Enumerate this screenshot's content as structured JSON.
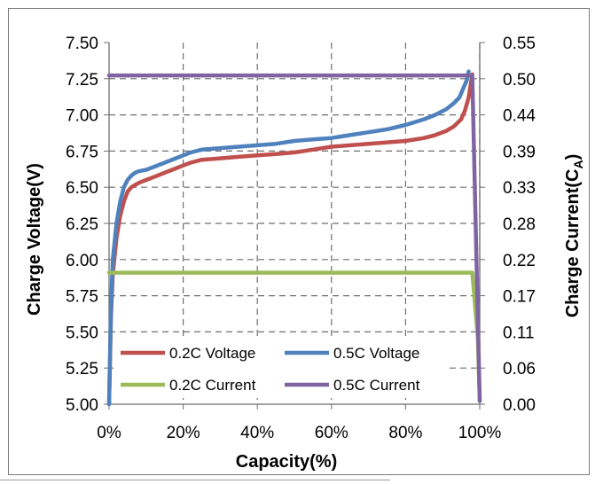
{
  "chart_data": {
    "type": "line",
    "xlabel": "Capacity(%)",
    "ylabel_left": "Charge Voltage(V)",
    "ylabel_right": {
      "main": "Charge Current(C",
      "sub": "A",
      "close": ")"
    },
    "xlim": [
      0,
      100
    ],
    "ylim_left": [
      5.0,
      7.5
    ],
    "ylim_right": [
      0.0,
      0.55
    ],
    "x_ticks": [
      "0%",
      "20%",
      "40%",
      "60%",
      "80%",
      "100%"
    ],
    "y_ticks_left": [
      "7.50",
      "7.25",
      "7.00",
      "6.75",
      "6.50",
      "6.25",
      "6.00",
      "5.75",
      "5.50",
      "5.25",
      "5.00"
    ],
    "y_ticks_right": [
      "0.55",
      "0.50",
      "0.44",
      "0.39",
      "0.33",
      "0.28",
      "0.22",
      "0.17",
      "0.11",
      "0.06",
      "0.00"
    ],
    "grid": "dashed",
    "legend_position": "bottom-left",
    "legend": [
      "0.2C Voltage",
      "0.5C Voltage",
      "0.2C Current",
      "0.5C Current"
    ],
    "series": [
      {
        "name": "0.2C Voltage",
        "axis": "left",
        "color": "#c0504d",
        "x": [
          0,
          0.5,
          1,
          2,
          3,
          4,
          5,
          6,
          8,
          10,
          12,
          15,
          18,
          20,
          22,
          25,
          30,
          35,
          40,
          45,
          50,
          55,
          60,
          65,
          70,
          75,
          80,
          85,
          88,
          91,
          93,
          95,
          96,
          97,
          98
        ],
        "y": [
          5.0,
          5.6,
          5.9,
          6.15,
          6.3,
          6.4,
          6.47,
          6.5,
          6.53,
          6.55,
          6.57,
          6.6,
          6.63,
          6.65,
          6.67,
          6.69,
          6.7,
          6.71,
          6.72,
          6.73,
          6.74,
          6.76,
          6.78,
          6.79,
          6.8,
          6.81,
          6.82,
          6.84,
          6.86,
          6.89,
          6.92,
          6.97,
          7.03,
          7.12,
          7.28
        ]
      },
      {
        "name": "0.5C Voltage",
        "axis": "left",
        "color": "#4f81bd",
        "x": [
          0,
          0.5,
          1,
          2,
          3,
          4,
          5,
          6,
          7,
          8,
          10,
          12,
          15,
          18,
          20,
          22,
          25,
          30,
          35,
          40,
          45,
          50,
          55,
          60,
          65,
          70,
          75,
          80,
          85,
          88,
          91,
          93,
          94.5,
          95.5,
          96.5,
          97
        ],
        "y": [
          5.0,
          5.65,
          6.0,
          6.25,
          6.4,
          6.5,
          6.55,
          6.58,
          6.6,
          6.61,
          6.62,
          6.64,
          6.67,
          6.7,
          6.72,
          6.74,
          6.76,
          6.77,
          6.78,
          6.79,
          6.8,
          6.82,
          6.83,
          6.84,
          6.86,
          6.88,
          6.9,
          6.93,
          6.97,
          7.0,
          7.04,
          7.08,
          7.12,
          7.18,
          7.24,
          7.3
        ]
      },
      {
        "name": "0.2C Current",
        "axis": "right",
        "color": "#9bbb59",
        "x": [
          0,
          98,
          99.5,
          100
        ],
        "y": [
          0.2,
          0.2,
          0.1,
          0.005
        ]
      },
      {
        "name": "0.5C Current",
        "axis": "right",
        "color": "#8064a2",
        "x": [
          0,
          96,
          97,
          98,
          99,
          100
        ],
        "y": [
          0.5,
          0.5,
          0.5,
          0.5,
          0.25,
          0.005
        ]
      }
    ]
  }
}
